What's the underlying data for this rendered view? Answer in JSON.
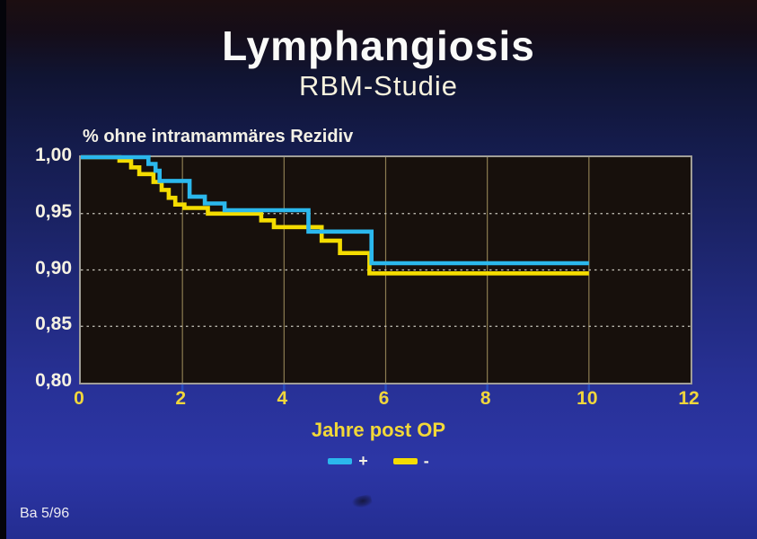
{
  "slide": {
    "title": "Lymphangiosis",
    "subtitle": "RBM-Studie",
    "footer": "Ba 5/96"
  },
  "chart_data": {
    "type": "line",
    "subtype": "kaplan-meier-step",
    "title": "% ohne intramammäres Rezidiv",
    "xlabel": "Jahre post OP",
    "ylabel": "",
    "xlim": [
      0,
      12
    ],
    "ylim": [
      0.8,
      1.0
    ],
    "x_ticks": [
      {
        "value": 0,
        "label": "0"
      },
      {
        "value": 2,
        "label": "2"
      },
      {
        "value": 4,
        "label": "4"
      },
      {
        "value": 6,
        "label": "6"
      },
      {
        "value": 8,
        "label": "8"
      },
      {
        "value": 10,
        "label": "10"
      },
      {
        "value": 12,
        "label": "12"
      }
    ],
    "y_ticks": [
      {
        "value": 1.0,
        "label": "1,00"
      },
      {
        "value": 0.95,
        "label": "0,95"
      },
      {
        "value": 0.9,
        "label": "0,90"
      },
      {
        "value": 0.85,
        "label": "0,85"
      },
      {
        "value": 0.8,
        "label": "0,80"
      }
    ],
    "grid": {
      "vertical_solid": true,
      "horizontal_dotted": true
    },
    "legend": {
      "position": "bottom-center",
      "entries": [
        {
          "label": "+",
          "color": "#2bb8ed"
        },
        {
          "label": "-",
          "color": "#f4dc00"
        }
      ]
    },
    "series": [
      {
        "name": "-",
        "color": "#f4dc00",
        "end_x": 10,
        "final_value": 0.897,
        "steps": [
          [
            0,
            1.0
          ],
          [
            0.76,
            0.997
          ],
          [
            0.99,
            0.991
          ],
          [
            1.15,
            0.985
          ],
          [
            1.43,
            0.978
          ],
          [
            1.59,
            0.971
          ],
          [
            1.73,
            0.964
          ],
          [
            1.86,
            0.958
          ],
          [
            2.04,
            0.955
          ],
          [
            2.5,
            0.95
          ],
          [
            3.55,
            0.944
          ],
          [
            3.8,
            0.938
          ],
          [
            4.74,
            0.926
          ],
          [
            5.1,
            0.915
          ],
          [
            5.68,
            0.897
          ]
        ]
      },
      {
        "name": "+",
        "color": "#2bb8ed",
        "end_x": 10,
        "final_value": 0.906,
        "steps": [
          [
            0,
            1.0
          ],
          [
            1.33,
            0.994
          ],
          [
            1.47,
            0.988
          ],
          [
            1.55,
            0.979
          ],
          [
            2.14,
            0.965
          ],
          [
            2.44,
            0.959
          ],
          [
            2.83,
            0.953
          ],
          [
            4.48,
            0.934
          ],
          [
            5.72,
            0.906
          ]
        ]
      }
    ],
    "style": {
      "plot_background": "#17100c",
      "vertical_grid_color": "#8c7d52",
      "horizontal_grid_color": "#c9c6bc",
      "axis_tick_stub_color": "#2a4ec0",
      "x_tick_color": "#f0d63c",
      "y_tick_color": "#f6f2e2"
    }
  }
}
